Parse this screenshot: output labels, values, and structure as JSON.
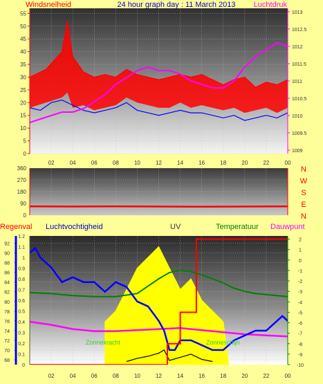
{
  "chart_data": [
    {
      "type": "line",
      "title": "24 hour graph day : 11 March 2013",
      "left_label": "Windsnelheid",
      "right_label": "Luchtdruk",
      "x_ticks": [
        "02",
        "04",
        "06",
        "08",
        "10",
        "12",
        "14",
        "16",
        "18",
        "20",
        "22",
        "00"
      ],
      "y_left_ticks": [
        0,
        5,
        10,
        15,
        20,
        25,
        30,
        35,
        40,
        45,
        50,
        55
      ],
      "y_left_range": [
        0,
        57
      ],
      "y_right_ticks": [
        "1009",
        "1009.5",
        "1010",
        "1010.5",
        "1011",
        "1011.5",
        "1012",
        "1012.5",
        "1013"
      ],
      "y_right_range": [
        1008.9,
        1013.1
      ],
      "grid": true,
      "series": [
        {
          "name": "Windsnelheid",
          "color": "#ff0000",
          "x": [
            0,
            1.5,
            3,
            3.5,
            4,
            5,
            6,
            7,
            8,
            9,
            10,
            11,
            12,
            13,
            14,
            15,
            16,
            17,
            18,
            19,
            20,
            21,
            22,
            23,
            24
          ],
          "values": [
            30,
            33,
            40,
            52,
            38,
            32,
            30,
            31,
            30,
            33,
            31,
            30,
            29,
            30,
            31,
            30,
            31,
            29,
            27,
            29,
            30,
            26,
            28,
            27,
            29
          ]
        },
        {
          "name": "Windsnelheid min",
          "color": "#ff0000",
          "x": [
            0,
            1.5,
            3,
            3.5,
            4,
            5,
            6,
            7,
            8,
            9,
            10,
            11,
            12,
            13,
            14,
            15,
            16,
            17,
            18,
            19,
            20,
            21,
            22,
            23,
            24
          ],
          "values": [
            18,
            20,
            22,
            24,
            18,
            19,
            17,
            18,
            19,
            22,
            20,
            19,
            18,
            18,
            20,
            18,
            19,
            18,
            17,
            18,
            16,
            17,
            18,
            16,
            18
          ]
        },
        {
          "name": "Gemiddelde windsnelheid",
          "color": "#0000ff",
          "x": [
            0,
            1,
            2,
            3,
            4,
            5,
            6,
            7,
            8,
            9,
            10,
            11,
            12,
            13,
            14,
            15,
            16,
            17,
            18,
            19,
            20,
            21,
            22,
            23,
            24
          ],
          "values": [
            18,
            17,
            20,
            21,
            19,
            17,
            16,
            17,
            18,
            20,
            17,
            16,
            15,
            16,
            17,
            16,
            16,
            15,
            14,
            15,
            13,
            14,
            15,
            14,
            16
          ]
        },
        {
          "name": "Luchtdruk",
          "color": "#ff00ff",
          "x": [
            0,
            1,
            2,
            3,
            4,
            5,
            6,
            7,
            8,
            9,
            10,
            11,
            12,
            13,
            14,
            15,
            16,
            17,
            18,
            19,
            20,
            21,
            22,
            23,
            24
          ],
          "values": [
            1009.8,
            1009.9,
            1010.0,
            1010.1,
            1010.1,
            1010.2,
            1010.4,
            1010.6,
            1010.9,
            1011.1,
            1011.3,
            1011.4,
            1011.3,
            1011.3,
            1011.2,
            1011.0,
            1010.9,
            1010.8,
            1010.8,
            1011.0,
            1011.4,
            1011.7,
            1011.9,
            1012.1,
            1012.0
          ]
        }
      ]
    },
    {
      "type": "line",
      "y_ticks": [
        0,
        90,
        180,
        270,
        360
      ],
      "y_range": [
        0,
        360
      ],
      "direction_labels": [
        "N",
        "W",
        "S",
        "E",
        "N"
      ],
      "series": [
        {
          "name": "Windrichting",
          "color": "#ff0000",
          "x": [
            0,
            4,
            8,
            12,
            16,
            20,
            24
          ],
          "values": [
            68,
            66,
            67,
            66,
            65,
            66,
            67
          ]
        }
      ]
    },
    {
      "type": "line",
      "labels": {
        "regenval": "Regenval",
        "luchtvochtigheid": "Luchtvochtigheid",
        "uv": "UV",
        "temperatuur": "Temperatuur",
        "dauwpunt": "Dauwpunt",
        "zonkracht": "Zonnekracht",
        "zonneschijn": "Zonneschijn"
      },
      "y_hum_ticks": [
        68,
        70,
        72,
        74,
        76,
        78,
        80,
        82,
        84,
        86,
        88,
        90,
        92
      ],
      "y_hum_range": [
        67,
        93.5
      ],
      "y_uv_ticks": [
        "0",
        "0.1",
        "0.2",
        "0.3",
        "0.4",
        "0.5",
        "0.6",
        "0.7",
        "0.8",
        "0.9",
        "1",
        "1.1",
        "1.2"
      ],
      "y_uv_range": [
        0,
        1.2
      ],
      "y_temp_ticks": [
        -10,
        -9,
        -8,
        -7,
        -6,
        -5,
        -4,
        -3,
        -2,
        -1,
        0,
        1,
        2
      ],
      "y_temp_range": [
        -10,
        2.3
      ],
      "series": [
        {
          "name": "Luchtvochtigheid",
          "color": "#0000ff",
          "x": [
            0,
            0.5,
            1,
            1.5,
            2,
            3,
            4,
            5,
            6,
            6.5,
            7,
            8,
            9,
            10,
            11,
            12,
            12.5,
            13,
            13.5,
            14,
            15,
            16,
            17,
            18,
            19,
            20,
            21,
            22,
            23,
            23.5,
            24
          ],
          "values": [
            90,
            91,
            89,
            88,
            87,
            84,
            85,
            84,
            84,
            83,
            82,
            84,
            83,
            80,
            79,
            76,
            74,
            70,
            70,
            72,
            72,
            71,
            70,
            70,
            72,
            73,
            74,
            74,
            76,
            77,
            76
          ]
        },
        {
          "name": "Temperatuur",
          "color": "#008000",
          "x": [
            0,
            2,
            4,
            6,
            8,
            10,
            11,
            12,
            13,
            14,
            15,
            16,
            17,
            18,
            19,
            20,
            21,
            22,
            23,
            24
          ],
          "values": [
            -3.1,
            -3.2,
            -3.4,
            -3.5,
            -3.5,
            -3.2,
            -2.5,
            -1.8,
            -1.2,
            -1.0,
            -1.1,
            -1.4,
            -1.8,
            -2.2,
            -2.7,
            -3.0,
            -3.2,
            -3.3,
            -3.4,
            -3.5
          ]
        },
        {
          "name": "Dauwpunt",
          "color": "#ff00ff",
          "x": [
            0,
            2,
            4,
            6,
            8,
            10,
            12,
            14,
            16,
            18,
            20,
            22,
            24
          ],
          "values": [
            -5.9,
            -6.2,
            -6.6,
            -6.8,
            -6.8,
            -6.7,
            -6.6,
            -6.5,
            -6.7,
            -6.9,
            -7.1,
            -7.2,
            -7.3
          ]
        },
        {
          "name": "Regenval",
          "color": "#ff0000",
          "x": [
            0,
            12.8,
            12.8,
            14,
            14,
            15.5,
            15.5,
            24
          ],
          "values": [
            -10,
            -10,
            -8,
            -8,
            -5,
            -5,
            2,
            2
          ]
        },
        {
          "name": "UV",
          "color": "#ffff00",
          "x": [
            7,
            8,
            9,
            10,
            11,
            12,
            13,
            14,
            15,
            16,
            17,
            18,
            18.5
          ],
          "values": [
            0.4,
            0.5,
            0.7,
            0.9,
            1.0,
            1.1,
            0.9,
            0.7,
            0.8,
            0.6,
            0.5,
            0.4,
            0
          ]
        },
        {
          "name": "Zonnekracht",
          "color": "#000000",
          "x": [
            9,
            10,
            11,
            12,
            12.5,
            13,
            14,
            15,
            16,
            17
          ],
          "values": [
            -9.7,
            -9.4,
            -9.2,
            -8.9,
            -8.6,
            -9.6,
            -9.3,
            -9.0,
            -9.5,
            -9.7
          ]
        }
      ]
    }
  ]
}
